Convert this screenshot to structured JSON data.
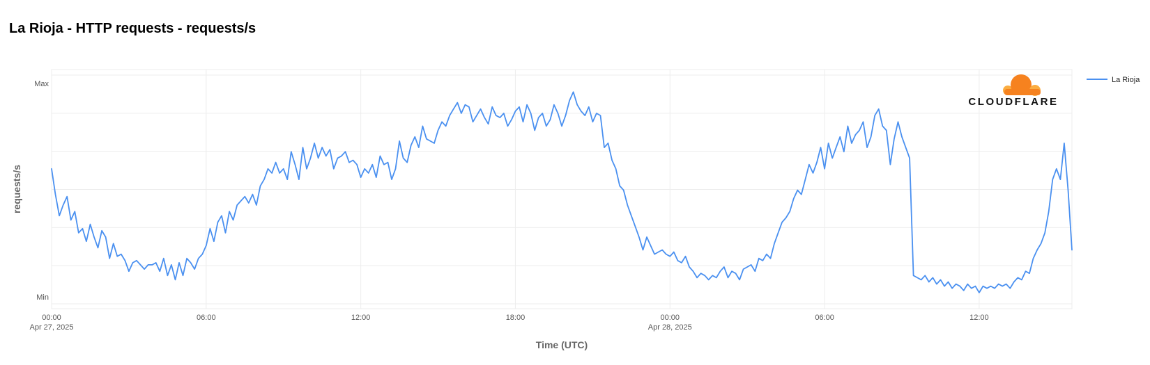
{
  "title": "La Rioja - HTTP requests - requests/s",
  "brand": {
    "name": "CLOUDFLARE",
    "color_primary": "#f6821f",
    "color_secondary": "#fbad41"
  },
  "chart_data": {
    "type": "line",
    "xlabel": "Time (UTC)",
    "ylabel": "requests/s",
    "y_tick_labels": {
      "max": "Max",
      "min": "Min"
    },
    "ylim": [
      0,
      1
    ],
    "x_range_hours": [
      0,
      39.6
    ],
    "x_ticks": [
      {
        "hour": 0,
        "time": "00:00",
        "date": "Apr 27, 2025"
      },
      {
        "hour": 6,
        "time": "06:00",
        "date": ""
      },
      {
        "hour": 12,
        "time": "12:00",
        "date": ""
      },
      {
        "hour": 18,
        "time": "18:00",
        "date": ""
      },
      {
        "hour": 24,
        "time": "00:00",
        "date": "Apr 28, 2025"
      },
      {
        "hour": 30,
        "time": "06:00",
        "date": ""
      },
      {
        "hour": 36,
        "time": "12:00",
        "date": ""
      }
    ],
    "grid": true,
    "legend_position": "top-right",
    "series": [
      {
        "name": "La Rioja",
        "color": "#4a90f0",
        "points": [
          [
            0,
            0.6
          ],
          [
            0.15,
            0.48
          ],
          [
            0.3,
            0.38
          ],
          [
            0.45,
            0.43
          ],
          [
            0.6,
            0.47
          ],
          [
            0.75,
            0.36
          ],
          [
            0.9,
            0.4
          ],
          [
            1.05,
            0.3
          ],
          [
            1.2,
            0.32
          ],
          [
            1.35,
            0.26
          ],
          [
            1.5,
            0.34
          ],
          [
            1.65,
            0.28
          ],
          [
            1.8,
            0.23
          ],
          [
            1.95,
            0.31
          ],
          [
            2.1,
            0.28
          ],
          [
            2.25,
            0.18
          ],
          [
            2.4,
            0.25
          ],
          [
            2.55,
            0.19
          ],
          [
            2.7,
            0.2
          ],
          [
            2.85,
            0.17
          ],
          [
            3.0,
            0.12
          ],
          [
            3.15,
            0.16
          ],
          [
            3.3,
            0.17
          ],
          [
            3.45,
            0.15
          ],
          [
            3.6,
            0.13
          ],
          [
            3.75,
            0.15
          ],
          [
            3.9,
            0.15
          ],
          [
            4.05,
            0.16
          ],
          [
            4.2,
            0.12
          ],
          [
            4.35,
            0.18
          ],
          [
            4.5,
            0.1
          ],
          [
            4.65,
            0.15
          ],
          [
            4.8,
            0.08
          ],
          [
            4.95,
            0.16
          ],
          [
            5.1,
            0.1
          ],
          [
            5.25,
            0.18
          ],
          [
            5.4,
            0.16
          ],
          [
            5.55,
            0.13
          ],
          [
            5.7,
            0.18
          ],
          [
            5.85,
            0.2
          ],
          [
            6.0,
            0.24
          ],
          [
            6.15,
            0.32
          ],
          [
            6.3,
            0.26
          ],
          [
            6.45,
            0.35
          ],
          [
            6.6,
            0.38
          ],
          [
            6.75,
            0.3
          ],
          [
            6.9,
            0.4
          ],
          [
            7.05,
            0.36
          ],
          [
            7.2,
            0.43
          ],
          [
            7.35,
            0.45
          ],
          [
            7.5,
            0.47
          ],
          [
            7.65,
            0.44
          ],
          [
            7.8,
            0.48
          ],
          [
            7.95,
            0.43
          ],
          [
            8.1,
            0.52
          ],
          [
            8.25,
            0.55
          ],
          [
            8.4,
            0.6
          ],
          [
            8.55,
            0.58
          ],
          [
            8.7,
            0.63
          ],
          [
            8.85,
            0.58
          ],
          [
            9.0,
            0.6
          ],
          [
            9.15,
            0.55
          ],
          [
            9.3,
            0.68
          ],
          [
            9.45,
            0.62
          ],
          [
            9.6,
            0.55
          ],
          [
            9.75,
            0.7
          ],
          [
            9.9,
            0.6
          ],
          [
            10.05,
            0.65
          ],
          [
            10.2,
            0.72
          ],
          [
            10.35,
            0.65
          ],
          [
            10.5,
            0.7
          ],
          [
            10.65,
            0.66
          ],
          [
            10.8,
            0.69
          ],
          [
            10.95,
            0.6
          ],
          [
            11.1,
            0.65
          ],
          [
            11.25,
            0.66
          ],
          [
            11.4,
            0.68
          ],
          [
            11.55,
            0.63
          ],
          [
            11.7,
            0.64
          ],
          [
            11.85,
            0.62
          ],
          [
            12.0,
            0.56
          ],
          [
            12.15,
            0.6
          ],
          [
            12.3,
            0.58
          ],
          [
            12.45,
            0.62
          ],
          [
            12.6,
            0.56
          ],
          [
            12.75,
            0.66
          ],
          [
            12.9,
            0.62
          ],
          [
            13.05,
            0.63
          ],
          [
            13.2,
            0.55
          ],
          [
            13.35,
            0.6
          ],
          [
            13.5,
            0.73
          ],
          [
            13.65,
            0.65
          ],
          [
            13.8,
            0.63
          ],
          [
            13.95,
            0.71
          ],
          [
            14.1,
            0.75
          ],
          [
            14.25,
            0.7
          ],
          [
            14.4,
            0.8
          ],
          [
            14.55,
            0.74
          ],
          [
            14.7,
            0.73
          ],
          [
            14.85,
            0.72
          ],
          [
            15.0,
            0.78
          ],
          [
            15.15,
            0.82
          ],
          [
            15.3,
            0.8
          ],
          [
            15.45,
            0.85
          ],
          [
            15.6,
            0.88
          ],
          [
            15.75,
            0.91
          ],
          [
            15.9,
            0.86
          ],
          [
            16.05,
            0.9
          ],
          [
            16.2,
            0.89
          ],
          [
            16.35,
            0.82
          ],
          [
            16.5,
            0.85
          ],
          [
            16.65,
            0.88
          ],
          [
            16.8,
            0.84
          ],
          [
            16.95,
            0.81
          ],
          [
            17.1,
            0.89
          ],
          [
            17.25,
            0.85
          ],
          [
            17.4,
            0.84
          ],
          [
            17.55,
            0.86
          ],
          [
            17.7,
            0.8
          ],
          [
            17.85,
            0.83
          ],
          [
            18.0,
            0.87
          ],
          [
            18.15,
            0.89
          ],
          [
            18.3,
            0.82
          ],
          [
            18.45,
            0.9
          ],
          [
            18.6,
            0.86
          ],
          [
            18.75,
            0.78
          ],
          [
            18.9,
            0.84
          ],
          [
            19.05,
            0.86
          ],
          [
            19.2,
            0.8
          ],
          [
            19.35,
            0.83
          ],
          [
            19.5,
            0.9
          ],
          [
            19.65,
            0.86
          ],
          [
            19.8,
            0.8
          ],
          [
            19.95,
            0.85
          ],
          [
            20.1,
            0.92
          ],
          [
            20.25,
            0.96
          ],
          [
            20.4,
            0.9
          ],
          [
            20.55,
            0.87
          ],
          [
            20.7,
            0.85
          ],
          [
            20.85,
            0.89
          ],
          [
            21.0,
            0.82
          ],
          [
            21.15,
            0.86
          ],
          [
            21.3,
            0.85
          ],
          [
            21.45,
            0.7
          ],
          [
            21.6,
            0.72
          ],
          [
            21.75,
            0.64
          ],
          [
            21.9,
            0.6
          ],
          [
            22.05,
            0.52
          ],
          [
            22.2,
            0.5
          ],
          [
            22.35,
            0.43
          ],
          [
            22.5,
            0.38
          ],
          [
            22.65,
            0.33
          ],
          [
            22.8,
            0.28
          ],
          [
            22.95,
            0.22
          ],
          [
            23.1,
            0.28
          ],
          [
            23.25,
            0.24
          ],
          [
            23.4,
            0.2
          ],
          [
            23.55,
            0.21
          ],
          [
            23.7,
            0.22
          ],
          [
            23.85,
            0.2
          ],
          [
            24.0,
            0.19
          ],
          [
            24.15,
            0.21
          ],
          [
            24.3,
            0.17
          ],
          [
            24.45,
            0.16
          ],
          [
            24.6,
            0.19
          ],
          [
            24.75,
            0.14
          ],
          [
            24.9,
            0.12
          ],
          [
            25.05,
            0.09
          ],
          [
            25.2,
            0.11
          ],
          [
            25.35,
            0.1
          ],
          [
            25.5,
            0.08
          ],
          [
            25.65,
            0.1
          ],
          [
            25.8,
            0.09
          ],
          [
            25.95,
            0.12
          ],
          [
            26.1,
            0.14
          ],
          [
            26.25,
            0.09
          ],
          [
            26.4,
            0.12
          ],
          [
            26.55,
            0.11
          ],
          [
            26.7,
            0.08
          ],
          [
            26.85,
            0.13
          ],
          [
            27.0,
            0.14
          ],
          [
            27.15,
            0.15
          ],
          [
            27.3,
            0.12
          ],
          [
            27.45,
            0.18
          ],
          [
            27.6,
            0.17
          ],
          [
            27.75,
            0.2
          ],
          [
            27.9,
            0.18
          ],
          [
            28.05,
            0.25
          ],
          [
            28.2,
            0.3
          ],
          [
            28.35,
            0.35
          ],
          [
            28.5,
            0.37
          ],
          [
            28.65,
            0.4
          ],
          [
            28.8,
            0.46
          ],
          [
            28.95,
            0.5
          ],
          [
            29.1,
            0.48
          ],
          [
            29.25,
            0.55
          ],
          [
            29.4,
            0.62
          ],
          [
            29.55,
            0.58
          ],
          [
            29.7,
            0.63
          ],
          [
            29.85,
            0.7
          ],
          [
            30.0,
            0.6
          ],
          [
            30.15,
            0.72
          ],
          [
            30.3,
            0.65
          ],
          [
            30.45,
            0.7
          ],
          [
            30.6,
            0.75
          ],
          [
            30.75,
            0.68
          ],
          [
            30.9,
            0.8
          ],
          [
            31.05,
            0.72
          ],
          [
            31.2,
            0.76
          ],
          [
            31.35,
            0.78
          ],
          [
            31.5,
            0.82
          ],
          [
            31.65,
            0.7
          ],
          [
            31.8,
            0.75
          ],
          [
            31.95,
            0.85
          ],
          [
            32.1,
            0.88
          ],
          [
            32.25,
            0.8
          ],
          [
            32.4,
            0.78
          ],
          [
            32.55,
            0.62
          ],
          [
            32.7,
            0.74
          ],
          [
            32.85,
            0.82
          ],
          [
            33.0,
            0.75
          ],
          [
            33.15,
            0.7
          ],
          [
            33.3,
            0.65
          ],
          [
            33.45,
            0.1
          ],
          [
            33.6,
            0.09
          ],
          [
            33.75,
            0.08
          ],
          [
            33.9,
            0.1
          ],
          [
            34.05,
            0.07
          ],
          [
            34.2,
            0.09
          ],
          [
            34.35,
            0.06
          ],
          [
            34.5,
            0.08
          ],
          [
            34.65,
            0.05
          ],
          [
            34.8,
            0.07
          ],
          [
            34.95,
            0.04
          ],
          [
            35.1,
            0.06
          ],
          [
            35.25,
            0.05
          ],
          [
            35.4,
            0.03
          ],
          [
            35.55,
            0.06
          ],
          [
            35.7,
            0.04
          ],
          [
            35.85,
            0.05
          ],
          [
            36.0,
            0.02
          ],
          [
            36.15,
            0.05
          ],
          [
            36.3,
            0.04
          ],
          [
            36.45,
            0.05
          ],
          [
            36.6,
            0.04
          ],
          [
            36.75,
            0.06
          ],
          [
            36.9,
            0.05
          ],
          [
            37.05,
            0.06
          ],
          [
            37.2,
            0.04
          ],
          [
            37.35,
            0.07
          ],
          [
            37.5,
            0.09
          ],
          [
            37.65,
            0.08
          ],
          [
            37.8,
            0.12
          ],
          [
            37.95,
            0.11
          ],
          [
            38.1,
            0.18
          ],
          [
            38.25,
            0.22
          ],
          [
            38.4,
            0.25
          ],
          [
            38.55,
            0.3
          ],
          [
            38.7,
            0.4
          ],
          [
            38.85,
            0.55
          ],
          [
            39.0,
            0.6
          ],
          [
            39.15,
            0.55
          ],
          [
            39.3,
            0.72
          ],
          [
            39.45,
            0.5
          ],
          [
            39.6,
            0.22
          ]
        ]
      }
    ]
  }
}
